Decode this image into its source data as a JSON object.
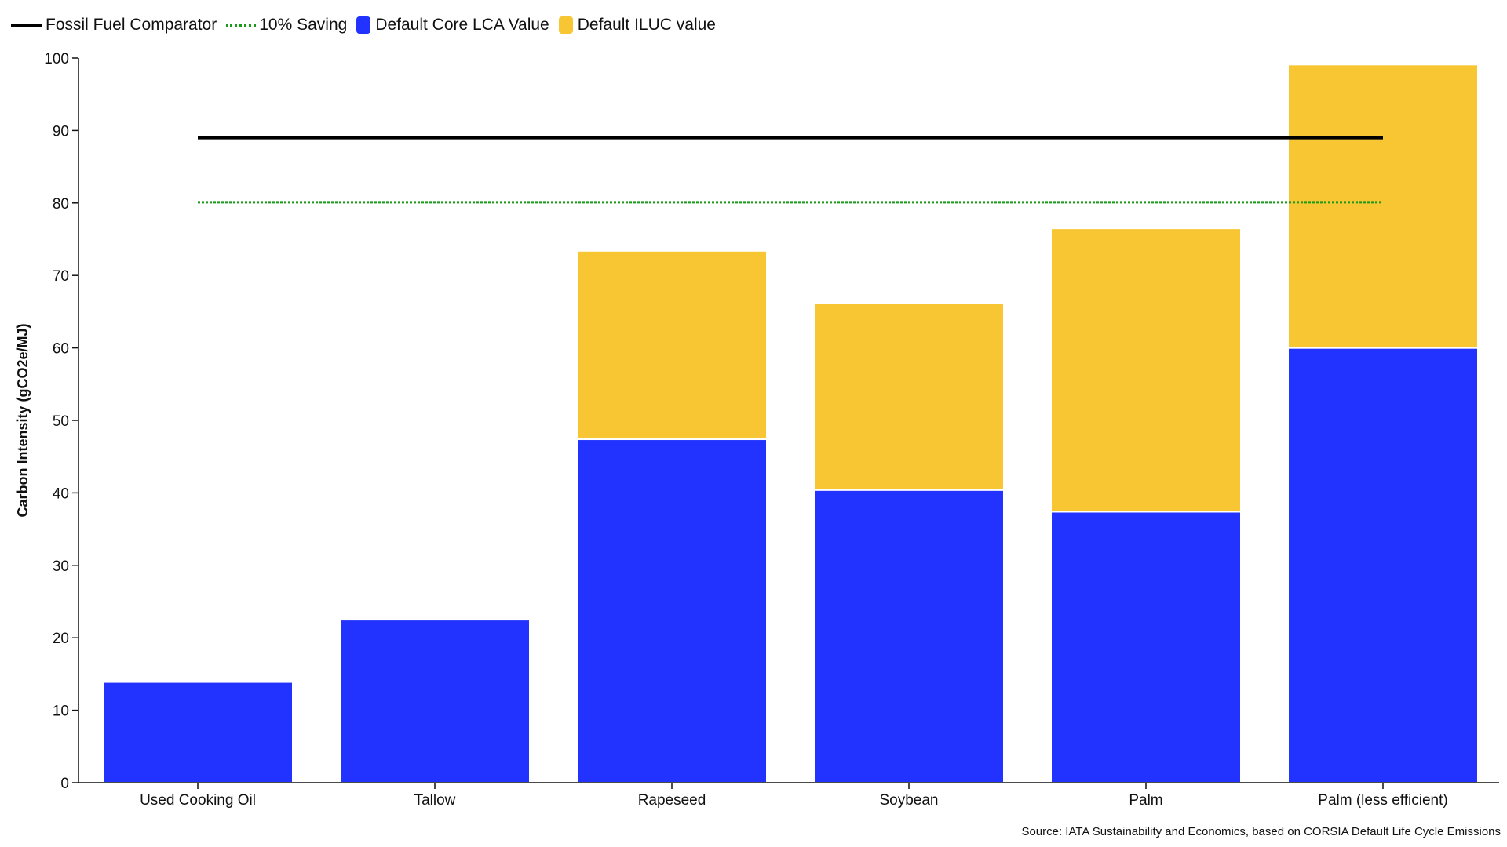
{
  "legend": {
    "fossil": "Fossil Fuel Comparator",
    "saving": "10% Saving",
    "core": "Default Core LCA Value",
    "iluc": "Default ILUC value"
  },
  "colors": {
    "core": "#2233ff",
    "iluc": "#f8c633",
    "fossil": "#000000",
    "saving": "#1a9a1a"
  },
  "source": "Source: IATA Sustainability and Economics, based on CORSIA Default Life Cycle Emissions",
  "chart_data": {
    "type": "bar",
    "stacked": true,
    "title": "",
    "ylabel": "Carbon Intensity (gCO2e/MJ)",
    "xlabel": "",
    "ylim": [
      0,
      100
    ],
    "yticks": [
      0,
      10,
      20,
      30,
      40,
      50,
      60,
      70,
      80,
      90,
      100
    ],
    "categories": [
      "Used Cooking Oil",
      "Tallow",
      "Rapeseed",
      "Soybean",
      "Palm",
      "Palm (less efficient)"
    ],
    "series": [
      {
        "name": "Default Core LCA Value",
        "values": [
          13.9,
          22.5,
          47.4,
          40.4,
          37.4,
          60.0
        ]
      },
      {
        "name": "Default ILUC value",
        "values": [
          0,
          0,
          26.0,
          25.8,
          39.1,
          39.1
        ]
      }
    ],
    "reference_lines": [
      {
        "name": "Fossil Fuel Comparator",
        "value": 89,
        "style": "solid"
      },
      {
        "name": "10% Saving",
        "value": 80.1,
        "style": "dotted"
      }
    ],
    "grid": false,
    "legend_position": "top-left"
  }
}
